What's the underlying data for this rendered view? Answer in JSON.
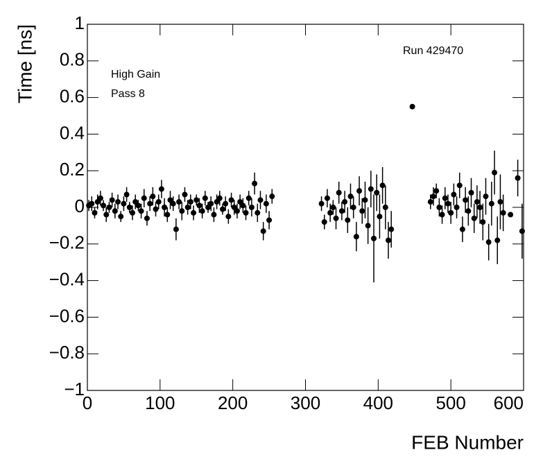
{
  "chart_data": {
    "type": "scatter",
    "x_label": "FEB Number",
    "y_label": "Time [ns]",
    "annotations": [
      "High Gain",
      "Pass 8",
      "Run 429470"
    ],
    "xlim": [
      0,
      600
    ],
    "xticks": [
      0,
      100,
      200,
      300,
      400,
      500,
      600
    ],
    "ylim": [
      -1,
      1
    ],
    "yticks": [
      {
        "value": -1,
        "label": "−1"
      },
      {
        "value": -0.8,
        "label": "−0.8"
      },
      {
        "value": -0.6,
        "label": "−0.6"
      },
      {
        "value": -0.4,
        "label": "−0.4"
      },
      {
        "value": -0.2,
        "label": "−0.2"
      },
      0,
      0.2,
      0.4,
      0.6,
      0.8,
      1
    ],
    "color": "#000000",
    "x": [
      2,
      6,
      10,
      14,
      18,
      22,
      26,
      30,
      34,
      38,
      42,
      46,
      50,
      54,
      58,
      62,
      66,
      70,
      74,
      78,
      82,
      86,
      90,
      94,
      98,
      102,
      106,
      110,
      114,
      118,
      122,
      126,
      130,
      134,
      138,
      142,
      146,
      150,
      154,
      158,
      162,
      166,
      170,
      174,
      178,
      182,
      186,
      190,
      194,
      198,
      202,
      206,
      210,
      214,
      218,
      222,
      226,
      230,
      234,
      238,
      242,
      246,
      250,
      254,
      322,
      326,
      330,
      334,
      338,
      342,
      346,
      350,
      354,
      358,
      362,
      366,
      370,
      374,
      378,
      382,
      386,
      390,
      394,
      398,
      402,
      406,
      410,
      414,
      418,
      447,
      472,
      476,
      480,
      484,
      488,
      492,
      496,
      500,
      504,
      508,
      512,
      516,
      520,
      524,
      528,
      532,
      536,
      540,
      544,
      548,
      552,
      556,
      560,
      564,
      568,
      572,
      582,
      592,
      598
    ],
    "values": [
      0.01,
      0.02,
      -0.03,
      0.03,
      0.05,
      0.01,
      -0.04,
      0.0,
      0.04,
      -0.02,
      0.03,
      -0.05,
      0.02,
      0.07,
      0.0,
      -0.03,
      0.03,
      0.01,
      -0.02,
      0.05,
      -0.06,
      0.02,
      0.06,
      -0.01,
      0.03,
      0.1,
      0.0,
      -0.04,
      0.04,
      0.02,
      -0.12,
      0.03,
      -0.02,
      0.07,
      0.0,
      0.03,
      -0.03,
      0.04,
      0.01,
      -0.02,
      0.05,
      0.0,
      0.02,
      -0.04,
      0.03,
      0.05,
      -0.01,
      0.02,
      -0.05,
      0.04,
      0.0,
      -0.02,
      0.03,
      0.01,
      -0.03,
      0.05,
      0.0,
      0.13,
      -0.03,
      0.04,
      -0.13,
      0.02,
      -0.07,
      0.06,
      0.02,
      -0.08,
      0.05,
      -0.03,
      0.0,
      -0.06,
      0.08,
      -0.02,
      0.03,
      -0.07,
      0.06,
      0.0,
      -0.16,
      0.09,
      -0.02,
      0.04,
      -0.1,
      0.1,
      -0.17,
      0.08,
      -0.05,
      0.12,
      0.0,
      -0.18,
      -0.12,
      0.55,
      0.03,
      0.06,
      0.09,
      0.0,
      -0.04,
      0.05,
      0.02,
      -0.03,
      0.07,
      0.0,
      0.12,
      -0.12,
      0.04,
      -0.02,
      0.08,
      -0.06,
      0.03,
      0.0,
      -0.08,
      0.06,
      -0.19,
      0.02,
      0.19,
      -0.18,
      0.03,
      -0.03,
      -0.04,
      0.16,
      -0.13
    ],
    "errors": [
      0.03,
      0.04,
      0.03,
      0.04,
      0.04,
      0.03,
      0.04,
      0.03,
      0.04,
      0.04,
      0.04,
      0.03,
      0.04,
      0.04,
      0.03,
      0.04,
      0.04,
      0.03,
      0.04,
      0.05,
      0.04,
      0.04,
      0.05,
      0.04,
      0.04,
      0.05,
      0.05,
      0.04,
      0.05,
      0.04,
      0.06,
      0.04,
      0.05,
      0.04,
      0.04,
      0.04,
      0.04,
      0.03,
      0.04,
      0.04,
      0.04,
      0.03,
      0.04,
      0.04,
      0.04,
      0.04,
      0.03,
      0.04,
      0.04,
      0.04,
      0.04,
      0.04,
      0.04,
      0.04,
      0.04,
      0.04,
      0.05,
      0.06,
      0.05,
      0.05,
      0.05,
      0.05,
      0.05,
      0.04,
      0.04,
      0.04,
      0.05,
      0.05,
      0.04,
      0.06,
      0.06,
      0.05,
      0.06,
      0.07,
      0.07,
      0.06,
      0.08,
      0.08,
      0.07,
      0.1,
      0.1,
      0.1,
      0.24,
      0.1,
      0.12,
      0.1,
      0.12,
      0.1,
      0.1,
      0.005,
      0.04,
      0.05,
      0.04,
      0.05,
      0.05,
      0.06,
      0.05,
      0.06,
      0.06,
      0.06,
      0.07,
      0.07,
      0.07,
      0.08,
      0.08,
      0.08,
      0.09,
      0.09,
      0.1,
      0.1,
      0.1,
      0.12,
      0.12,
      0.13,
      0.15,
      0.1,
      0.005,
      0.1,
      0.15
    ]
  }
}
